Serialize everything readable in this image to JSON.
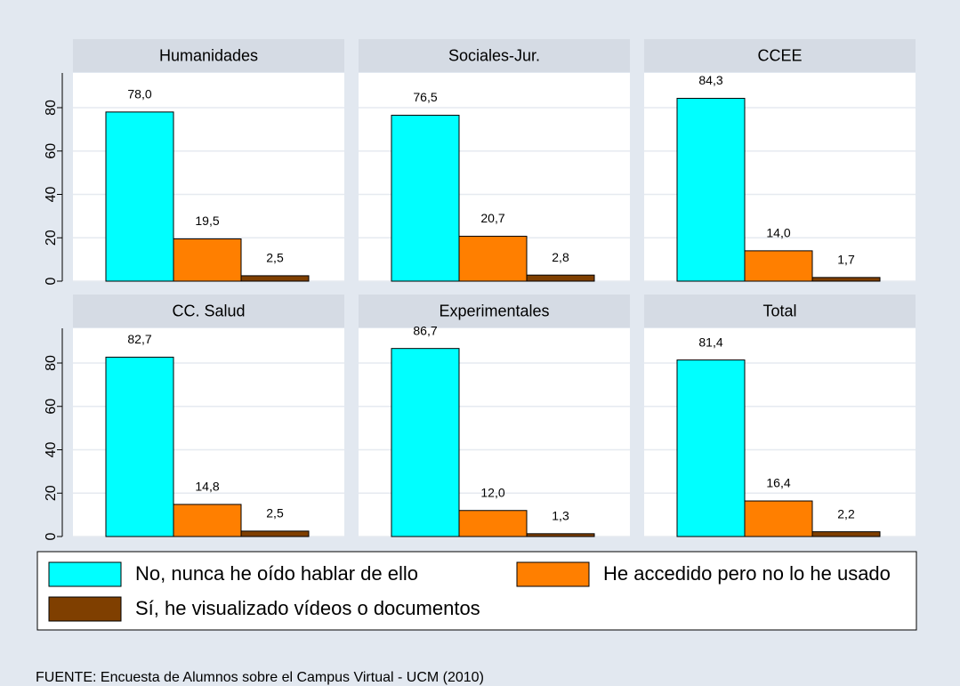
{
  "chart_data": {
    "type": "bar",
    "categories": [
      "Humanidades",
      "Sociales-Jur.",
      "CCEE",
      "CC. Salud",
      "Experimentales",
      "Total"
    ],
    "series": [
      {
        "name": "No, nunca he oído hablar de ello",
        "color": "#00ffff",
        "values": [
          78.0,
          76.5,
          84.3,
          82.7,
          86.7,
          81.4
        ],
        "value_labels": [
          "78,0",
          "76,5",
          "84,3",
          "82,7",
          "86,7",
          "81,4"
        ]
      },
      {
        "name": "He accedido pero no lo he usado",
        "color": "#ff7f00",
        "values": [
          19.5,
          20.7,
          14.0,
          14.8,
          12.0,
          16.4
        ],
        "value_labels": [
          "19,5",
          "20,7",
          "14,0",
          "14,8",
          "12,0",
          "16,4"
        ]
      },
      {
        "name": "Sí, he visualizado vídeos o documentos",
        "color": "#7f3f00",
        "values": [
          2.5,
          2.8,
          1.7,
          2.5,
          1.3,
          2.2
        ],
        "value_labels": [
          "2,5",
          "2,8",
          "1,7",
          "2,5",
          "1,3",
          "2,2"
        ]
      }
    ],
    "ylim": [
      0,
      96
    ],
    "yticks": [
      0,
      20,
      40,
      60,
      80
    ],
    "grid": true,
    "note": "FUENTE: Encuesta de Alumnos sobre el Campus Virtual - UCM (2010)"
  }
}
